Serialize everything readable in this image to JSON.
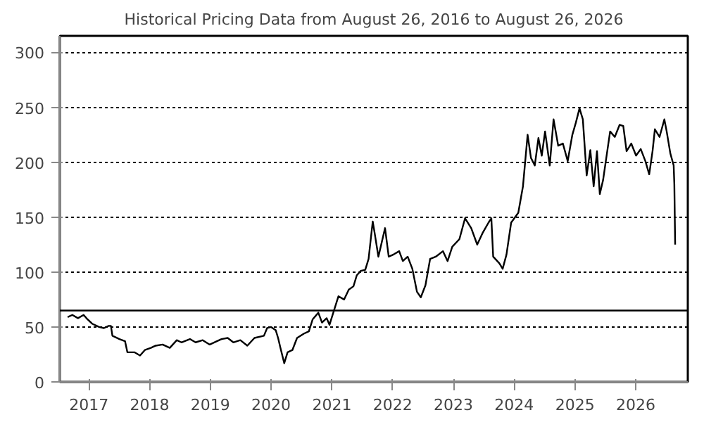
{
  "chart_data": {
    "type": "line",
    "title": "Historical Pricing Data from August 26, 2016 to August 26, 2026",
    "x": [
      "2016-08-26",
      "2016-09-23",
      "2016-10-27",
      "2016-11-30",
      "2016-12-23",
      "2017-01-20",
      "2017-03-03",
      "2017-04-01",
      "2017-04-29",
      "2017-05-13",
      "2017-05-22",
      "2017-07-03",
      "2017-08-06",
      "2017-08-20",
      "2017-10-01",
      "2017-11-04",
      "2017-12-03",
      "2018-01-08",
      "2018-02-06",
      "2018-03-20",
      "2018-05-02",
      "2018-06-13",
      "2018-07-11",
      "2018-08-31",
      "2018-10-04",
      "2018-11-16",
      "2018-12-28",
      "2019-02-09",
      "2019-03-09",
      "2019-04-15",
      "2019-05-19",
      "2019-06-30",
      "2019-08-11",
      "2019-09-23",
      "2019-11-19",
      "2019-12-08",
      "2020-01-01",
      "2020-01-29",
      "2020-02-12",
      "2020-02-26",
      "2020-03-20",
      "2020-04-09",
      "2020-05-08",
      "2020-06-05",
      "2020-07-17",
      "2020-08-15",
      "2020-09-07",
      "2020-10-11",
      "2020-11-02",
      "2020-11-30",
      "2020-12-17",
      "2021-01-17",
      "2021-02-09",
      "2021-03-15",
      "2021-04-12",
      "2021-05-10",
      "2021-05-30",
      "2021-06-22",
      "2021-07-20",
      "2021-08-09",
      "2021-08-17",
      "2021-09-03",
      "2021-09-14",
      "2021-10-07",
      "2021-10-27",
      "2021-11-16",
      "2021-12-08",
      "2022-01-06",
      "2022-02-09",
      "2022-03-03",
      "2022-04-01",
      "2022-04-29",
      "2022-05-27",
      "2022-06-19",
      "2022-07-17",
      "2022-08-14",
      "2022-09-17",
      "2022-10-30",
      "2022-11-27",
      "2022-12-25",
      "2023-02-06",
      "2023-03-12",
      "2023-04-18",
      "2023-05-24",
      "2023-06-27",
      "2023-07-31",
      "2023-08-17",
      "2023-08-28",
      "2023-10-04",
      "2023-10-24",
      "2023-11-16",
      "2023-12-14",
      "2024-01-26",
      "2024-02-23",
      "2024-03-22",
      "2024-04-11",
      "2024-05-04",
      "2024-05-26",
      "2024-06-15",
      "2024-07-05",
      "2024-08-02",
      "2024-08-25",
      "2024-09-22",
      "2024-10-20",
      "2024-11-18",
      "2024-12-16",
      "2025-01-06",
      "2025-01-28",
      "2025-02-17",
      "2025-03-12",
      "2025-04-03",
      "2025-04-23",
      "2025-05-13",
      "2025-05-30",
      "2025-06-19",
      "2025-07-08",
      "2025-07-31",
      "2025-08-28",
      "2025-09-26",
      "2025-10-18",
      "2025-11-07",
      "2025-12-05",
      "2026-01-03",
      "2026-01-31",
      "2026-02-28",
      "2026-03-23",
      "2026-04-12",
      "2026-04-26",
      "2026-05-24",
      "2026-06-22",
      "2026-07-06",
      "2026-07-28",
      "2026-08-17",
      "2026-08-21",
      "2026-08-26"
    ],
    "series": [
      {
        "color": "#000000",
        "values": [
          59,
          61,
          58,
          61,
          57,
          53,
          50,
          49,
          51,
          51,
          42,
          39,
          37,
          27,
          27,
          24,
          29,
          31,
          33,
          34,
          31,
          38,
          36,
          39,
          36,
          38,
          34,
          37,
          39,
          40,
          36,
          38,
          33,
          40,
          42,
          49,
          50,
          47,
          40,
          31,
          17,
          27,
          29,
          40,
          44,
          46,
          57,
          63,
          54,
          58,
          52,
          67,
          78,
          75,
          84,
          87,
          97,
          101,
          102,
          112,
          123,
          146,
          136,
          114,
          127,
          140,
          114,
          116,
          119,
          110,
          114,
          103,
          82,
          77,
          88,
          112,
          114,
          119,
          110,
          123,
          130,
          149,
          140,
          125,
          136,
          145,
          149,
          114,
          108,
          103,
          116,
          145,
          154,
          178,
          225,
          204,
          197,
          222,
          206,
          228,
          197,
          239,
          215,
          217,
          201,
          225,
          236,
          249,
          239,
          188,
          211,
          178,
          210,
          171,
          184,
          204,
          228,
          223,
          234,
          233,
          210,
          217,
          206,
          212,
          201,
          189,
          210,
          230,
          223,
          239,
          228,
          208,
          197,
          180,
          125
        ]
      }
    ],
    "xlim": [
      "2016-07-10",
      "2026-11-10"
    ],
    "xticks": [
      "2017",
      "2018",
      "2019",
      "2020",
      "2021",
      "2022",
      "2023",
      "2024",
      "2025",
      "2026"
    ],
    "ylim": [
      0,
      315
    ],
    "yticks": [
      0,
      50,
      100,
      150,
      200,
      250,
      300
    ],
    "grid": "y",
    "line_style": "solid",
    "ref_lines": [
      {
        "axis": "y",
        "value": 65,
        "color": "#000000"
      }
    ]
  }
}
